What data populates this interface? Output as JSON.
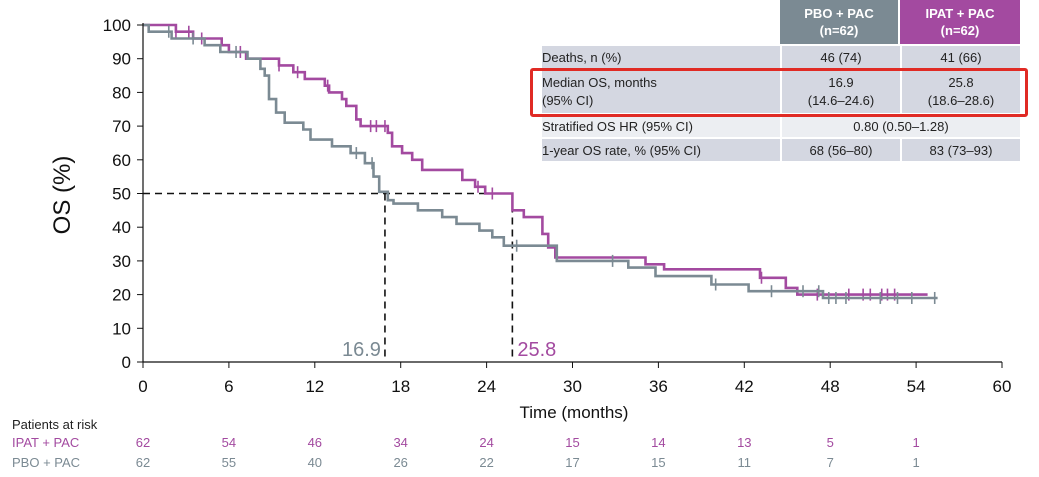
{
  "chart_data": {
    "type": "line",
    "title": "",
    "xlabel": "Time (months)",
    "ylabel": "OS (%)",
    "xlim": [
      0,
      60
    ],
    "ylim": [
      0,
      100
    ],
    "xticks": [
      0,
      6,
      12,
      18,
      24,
      30,
      36,
      42,
      48,
      54,
      60
    ],
    "yticks": [
      0,
      10,
      20,
      30,
      40,
      50,
      60,
      70,
      80,
      90,
      100
    ],
    "grid": false,
    "step": true,
    "series": [
      {
        "name": "IPAT + PAC",
        "color": "#a34aa0",
        "points": [
          [
            0,
            100
          ],
          [
            2.3,
            100
          ],
          [
            2.3,
            98
          ],
          [
            3.5,
            98
          ],
          [
            3.5,
            96
          ],
          [
            5.5,
            96
          ],
          [
            5.5,
            94
          ],
          [
            6,
            94
          ],
          [
            6,
            92
          ],
          [
            7.2,
            92
          ],
          [
            7.2,
            90
          ],
          [
            9.5,
            90
          ],
          [
            9.5,
            88
          ],
          [
            10.5,
            88
          ],
          [
            10.5,
            86
          ],
          [
            11.3,
            86
          ],
          [
            11.3,
            84
          ],
          [
            12.7,
            84
          ],
          [
            12.7,
            82
          ],
          [
            13,
            82
          ],
          [
            13,
            80
          ],
          [
            13.9,
            80
          ],
          [
            13.9,
            78
          ],
          [
            14.2,
            78
          ],
          [
            14.2,
            76
          ],
          [
            14.9,
            76
          ],
          [
            14.9,
            72
          ],
          [
            15.2,
            72
          ],
          [
            15.2,
            70
          ],
          [
            17.1,
            70
          ],
          [
            17.1,
            68
          ],
          [
            17.4,
            68
          ],
          [
            17.4,
            64
          ],
          [
            18.1,
            64
          ],
          [
            18.1,
            62
          ],
          [
            18.8,
            62
          ],
          [
            18.8,
            60
          ],
          [
            19.5,
            60
          ],
          [
            19.5,
            57
          ],
          [
            22.3,
            57
          ],
          [
            22.3,
            54
          ],
          [
            23.2,
            54
          ],
          [
            23.2,
            52
          ],
          [
            23.9,
            52
          ],
          [
            23.9,
            50
          ],
          [
            25.8,
            50
          ],
          [
            25.8,
            45
          ],
          [
            26.6,
            45
          ],
          [
            26.6,
            43
          ],
          [
            27.9,
            43
          ],
          [
            27.9,
            38
          ],
          [
            28.3,
            38
          ],
          [
            28.3,
            34
          ],
          [
            28.8,
            34
          ],
          [
            28.8,
            31
          ],
          [
            35.1,
            31
          ],
          [
            35.1,
            29
          ],
          [
            36.4,
            29
          ],
          [
            36.4,
            27.5
          ],
          [
            43.1,
            27.5
          ],
          [
            43.1,
            25
          ],
          [
            44.9,
            25
          ],
          [
            44.9,
            22
          ],
          [
            45.7,
            22
          ],
          [
            45.7,
            20
          ],
          [
            54.8,
            20
          ]
        ],
        "censor_x": [
          2.3,
          3.2,
          4.1,
          6.8,
          9.5,
          10.8,
          12.9,
          15.9,
          16.3,
          16.9,
          23.4,
          24.4,
          43.2,
          47.1,
          49.3,
          50.3,
          50.8,
          51.6,
          52.0,
          52.5
        ]
      },
      {
        "name": "PBO + PAC",
        "color": "#7b8a93",
        "points": [
          [
            0,
            100
          ],
          [
            0.4,
            100
          ],
          [
            0.4,
            98
          ],
          [
            2,
            98
          ],
          [
            2,
            96
          ],
          [
            4.3,
            96
          ],
          [
            4.3,
            94
          ],
          [
            5.4,
            94
          ],
          [
            5.4,
            92
          ],
          [
            7.3,
            92
          ],
          [
            7.3,
            90
          ],
          [
            8.2,
            90
          ],
          [
            8.2,
            87
          ],
          [
            8.5,
            87
          ],
          [
            8.5,
            85
          ],
          [
            8.8,
            85
          ],
          [
            8.8,
            78
          ],
          [
            9.3,
            78
          ],
          [
            9.3,
            74
          ],
          [
            9.9,
            74
          ],
          [
            9.9,
            71
          ],
          [
            11.2,
            71
          ],
          [
            11.2,
            69
          ],
          [
            11.7,
            69
          ],
          [
            11.7,
            66
          ],
          [
            13.2,
            66
          ],
          [
            13.2,
            64
          ],
          [
            14.5,
            64
          ],
          [
            14.5,
            62
          ],
          [
            15.5,
            62
          ],
          [
            15.5,
            59
          ],
          [
            16.1,
            59
          ],
          [
            16.1,
            55
          ],
          [
            16.5,
            55
          ],
          [
            16.5,
            50.5
          ],
          [
            17.1,
            50.5
          ],
          [
            17.1,
            48
          ],
          [
            17.5,
            48
          ],
          [
            17.5,
            47
          ],
          [
            19.2,
            47
          ],
          [
            19.2,
            45
          ],
          [
            20.9,
            45
          ],
          [
            20.9,
            43
          ],
          [
            21.9,
            43
          ],
          [
            21.9,
            41
          ],
          [
            23.5,
            41
          ],
          [
            23.5,
            39
          ],
          [
            24.4,
            39
          ],
          [
            24.4,
            37
          ],
          [
            25.2,
            37
          ],
          [
            25.2,
            34.5
          ],
          [
            28.9,
            34.5
          ],
          [
            28.9,
            30
          ],
          [
            33.9,
            30
          ],
          [
            33.9,
            28
          ],
          [
            35.8,
            28
          ],
          [
            35.8,
            25.5
          ],
          [
            39.7,
            25.5
          ],
          [
            39.7,
            23
          ],
          [
            42.3,
            23
          ],
          [
            42.3,
            21
          ],
          [
            47.5,
            21
          ],
          [
            47.5,
            19
          ],
          [
            55.5,
            19
          ]
        ],
        "censor_x": [
          1.8,
          3.5,
          6.5,
          14.9,
          16.0,
          26.1,
          32.8,
          40.0,
          43.9,
          46.1,
          47.2,
          47.9,
          48.4,
          49.1,
          51.5,
          52.7,
          53.7,
          55.3
        ]
      }
    ],
    "reference_lines": {
      "y": 50,
      "medians": [
        {
          "x": 16.9,
          "label": "16.9",
          "color": "#7b8a93"
        },
        {
          "x": 25.8,
          "label": "25.8",
          "color": "#a34aa0"
        }
      ]
    },
    "risk_table": {
      "title": "Patients at risk",
      "times": [
        0,
        6,
        12,
        18,
        24,
        30,
        36,
        42,
        48,
        54
      ],
      "rows": [
        {
          "label": "IPAT + PAC",
          "color": "#a34aa0",
          "values": [
            "62",
            "54",
            "46",
            "34",
            "24",
            "15",
            "14",
            "13",
            "5",
            "1"
          ]
        },
        {
          "label": "PBO + PAC",
          "color": "#7b8a93",
          "values": [
            "62",
            "55",
            "40",
            "26",
            "22",
            "17",
            "15",
            "11",
            "7",
            "1"
          ]
        }
      ]
    }
  },
  "summary_table": {
    "header_pbo_line1": "PBO + PAC",
    "header_pbo_line2": "(n=62)",
    "header_ipat_line1": "IPAT + PAC",
    "header_ipat_line2": "(n=62)",
    "deaths_label": "Deaths, n (%)",
    "deaths_pbo": "46 (74)",
    "deaths_ipat": "41 (66)",
    "median_label_line1": "Median OS, months",
    "median_label_line2": "(95% CI)",
    "median_pbo_line1": "16.9",
    "median_pbo_line2": "(14.6–24.6)",
    "median_ipat_line1": "25.8",
    "median_ipat_line2": "(18.6–28.6)",
    "hr_label": "Stratified OS HR (95% CI)",
    "hr_value": "0.80 (0.50–1.28)",
    "rate_label": "1-year OS rate, % (95% CI)",
    "rate_pbo": "68 (56–80)",
    "rate_ipat": "83 (73–93)",
    "highlight_color": "#e02a24"
  }
}
